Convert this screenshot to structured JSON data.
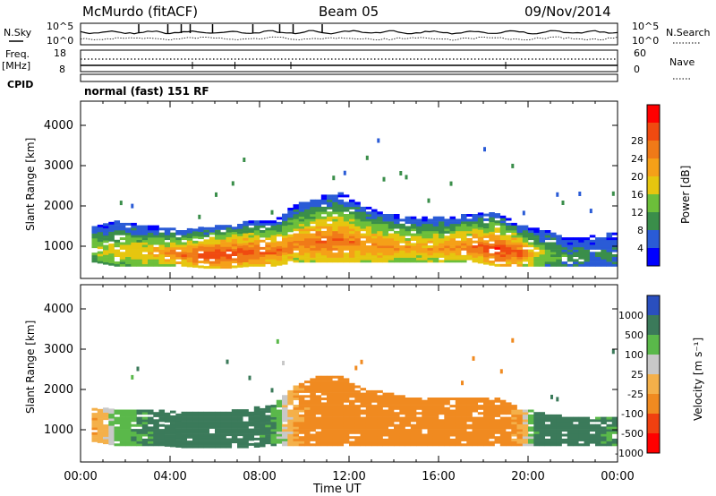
{
  "header": {
    "station": "McMurdo (fitACF)",
    "beam": "Beam 05",
    "date": "09/Nov/2014"
  },
  "top_panels": {
    "noise_left_label": "N.Sky",
    "noise_right_label": "N.Search",
    "noise_ticks": [
      "10^5",
      "10^0"
    ],
    "freq_label_line1": "Freq.",
    "freq_label_line2": "[MHz]",
    "freq_ticks": [
      "18",
      "8"
    ],
    "nave_label": "Nave",
    "nave_ticks": [
      "60",
      "0"
    ],
    "cpid_label": "CPID",
    "cpid_text": "normal (fast) 151 RF"
  },
  "colors": {
    "power": [
      "#0000ff",
      "#2a5bd6",
      "#3a8e4a",
      "#6cbf3a",
      "#e6c60f",
      "#f5a018",
      "#f07a18",
      "#f04a10",
      "#ff0000"
    ],
    "velocity": [
      "#2a4fbf",
      "#3b7a5a",
      "#5ab84a",
      "#c8c8c8",
      "#f4b04a",
      "#f08a20",
      "#f04010",
      "#ff0000"
    ]
  },
  "chart_data": [
    {
      "type": "heatmap",
      "name": "power",
      "xlabel": "",
      "ylabel": "Slant Range [km]",
      "xlim": [
        0,
        24
      ],
      "ylim": [
        200,
        4600
      ],
      "yticks": [
        "1000",
        "2000",
        "3000",
        "4000"
      ],
      "colorbar_label": "Power [dB]",
      "colorbar_ticks": [
        "4",
        "8",
        "12",
        "16",
        "20",
        "24",
        "28"
      ],
      "range_profile_by_hour": [
        {
          "hour": 0.5,
          "lower_km": 600,
          "upper_km": 1500,
          "peak_db": 14
        },
        {
          "hour": 1.5,
          "lower_km": 500,
          "upper_km": 1600,
          "peak_db": 16
        },
        {
          "hour": 2.5,
          "lower_km": 500,
          "upper_km": 1500,
          "peak_db": 18
        },
        {
          "hour": 3.5,
          "lower_km": 500,
          "upper_km": 1450,
          "peak_db": 20
        },
        {
          "hour": 4.5,
          "lower_km": 500,
          "upper_km": 1400,
          "peak_db": 24
        },
        {
          "hour": 5.5,
          "lower_km": 450,
          "upper_km": 1450,
          "peak_db": 28
        },
        {
          "hour": 6.5,
          "lower_km": 450,
          "upper_km": 1500,
          "peak_db": 28
        },
        {
          "hour": 7.5,
          "lower_km": 500,
          "upper_km": 1600,
          "peak_db": 26
        },
        {
          "hour": 8.5,
          "lower_km": 500,
          "upper_km": 1600,
          "peak_db": 24
        },
        {
          "hour": 9.5,
          "lower_km": 600,
          "upper_km": 2000,
          "peak_db": 22
        },
        {
          "hour": 10.5,
          "lower_km": 600,
          "upper_km": 2200,
          "peak_db": 24
        },
        {
          "hour": 11.5,
          "lower_km": 600,
          "upper_km": 2300,
          "peak_db": 24
        },
        {
          "hour": 12.5,
          "lower_km": 600,
          "upper_km": 2000,
          "peak_db": 22
        },
        {
          "hour": 13.5,
          "lower_km": 600,
          "upper_km": 1800,
          "peak_db": 22
        },
        {
          "hour": 14.5,
          "lower_km": 600,
          "upper_km": 1700,
          "peak_db": 20
        },
        {
          "hour": 15.5,
          "lower_km": 600,
          "upper_km": 1700,
          "peak_db": 20
        },
        {
          "hour": 16.5,
          "lower_km": 600,
          "upper_km": 1700,
          "peak_db": 22
        },
        {
          "hour": 17.5,
          "lower_km": 600,
          "upper_km": 1800,
          "peak_db": 24
        },
        {
          "hour": 18.5,
          "lower_km": 500,
          "upper_km": 1800,
          "peak_db": 28
        },
        {
          "hour": 19.5,
          "lower_km": 500,
          "upper_km": 1500,
          "peak_db": 26
        },
        {
          "hour": 20.5,
          "lower_km": 500,
          "upper_km": 1400,
          "peak_db": 14
        },
        {
          "hour": 21.5,
          "lower_km": 500,
          "upper_km": 1200,
          "peak_db": 10
        },
        {
          "hour": 22.5,
          "lower_km": 500,
          "upper_km": 1200,
          "peak_db": 8
        },
        {
          "hour": 23.5,
          "lower_km": 500,
          "upper_km": 1300,
          "peak_db": 8
        }
      ]
    },
    {
      "type": "heatmap",
      "name": "velocity",
      "xlabel": "Time UT",
      "ylabel": "Slant Range [km]",
      "xlim": [
        0,
        24
      ],
      "ylim": [
        200,
        4600
      ],
      "xticks": [
        "00:00",
        "04:00",
        "08:00",
        "12:00",
        "16:00",
        "20:00",
        "00:00"
      ],
      "yticks": [
        "1000",
        "2000",
        "3000",
        "4000"
      ],
      "colorbar_label": "Velocity [m s⁻¹]",
      "colorbar_ticks": [
        "1000",
        "500",
        "100",
        "25",
        "-25",
        "-100",
        "-500",
        "-1000"
      ],
      "range_profile_by_hour": [
        {
          "hour": 0.5,
          "lower_km": 700,
          "upper_km": 1500,
          "velocity_ms": -100
        },
        {
          "hour": 1.5,
          "lower_km": 600,
          "upper_km": 1500,
          "velocity_ms": 50
        },
        {
          "hour": 2.5,
          "lower_km": 600,
          "upper_km": 1500,
          "velocity_ms": 100
        },
        {
          "hour": 3.5,
          "lower_km": 600,
          "upper_km": 1450,
          "velocity_ms": 150
        },
        {
          "hour": 4.5,
          "lower_km": 550,
          "upper_km": 1450,
          "velocity_ms": 200
        },
        {
          "hour": 5.5,
          "lower_km": 550,
          "upper_km": 1400,
          "velocity_ms": 200
        },
        {
          "hour": 6.5,
          "lower_km": 550,
          "upper_km": 1450,
          "velocity_ms": 200
        },
        {
          "hour": 7.5,
          "lower_km": 550,
          "upper_km": 1500,
          "velocity_ms": 150
        },
        {
          "hour": 8.5,
          "lower_km": 600,
          "upper_km": 1600,
          "velocity_ms": 100
        },
        {
          "hour": 9.5,
          "lower_km": 600,
          "upper_km": 2100,
          "velocity_ms": -100
        },
        {
          "hour": 10.5,
          "lower_km": 600,
          "upper_km": 2300,
          "velocity_ms": -150
        },
        {
          "hour": 11.5,
          "lower_km": 600,
          "upper_km": 2300,
          "velocity_ms": -150
        },
        {
          "hour": 12.5,
          "lower_km": 600,
          "upper_km": 2000,
          "velocity_ms": -150
        },
        {
          "hour": 13.5,
          "lower_km": 600,
          "upper_km": 1900,
          "velocity_ms": -150
        },
        {
          "hour": 14.5,
          "lower_km": 600,
          "upper_km": 1800,
          "velocity_ms": -150
        },
        {
          "hour": 15.5,
          "lower_km": 600,
          "upper_km": 1800,
          "velocity_ms": -150
        },
        {
          "hour": 16.5,
          "lower_km": 600,
          "upper_km": 1800,
          "velocity_ms": -150
        },
        {
          "hour": 17.5,
          "lower_km": 600,
          "upper_km": 1800,
          "velocity_ms": -150
        },
        {
          "hour": 18.5,
          "lower_km": 600,
          "upper_km": 1800,
          "velocity_ms": -150
        },
        {
          "hour": 19.5,
          "lower_km": 600,
          "upper_km": 1500,
          "velocity_ms": -100
        },
        {
          "hour": 20.5,
          "lower_km": 600,
          "upper_km": 1400,
          "velocity_ms": 200
        },
        {
          "hour": 21.5,
          "lower_km": 600,
          "upper_km": 1300,
          "velocity_ms": 200
        },
        {
          "hour": 22.5,
          "lower_km": 600,
          "upper_km": 1300,
          "velocity_ms": 150
        },
        {
          "hour": 23.5,
          "lower_km": 600,
          "upper_km": 1300,
          "velocity_ms": 100
        }
      ]
    }
  ]
}
